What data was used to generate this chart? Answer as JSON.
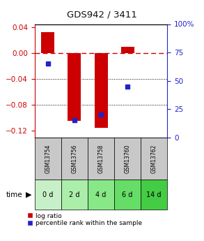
{
  "title": "GDS942 / 3411",
  "samples": [
    "GSM13754",
    "GSM13756",
    "GSM13758",
    "GSM13760",
    "GSM13762"
  ],
  "time_labels": [
    "0 d",
    "2 d",
    "4 d",
    "6 d",
    "14 d"
  ],
  "log_ratios": [
    0.033,
    -0.105,
    -0.115,
    0.01,
    0.0
  ],
  "percentile_ranks": [
    65,
    15,
    20,
    45,
    0
  ],
  "ylim_left": [
    -0.13,
    0.045
  ],
  "ylim_right": [
    0,
    100
  ],
  "left_yticks": [
    0.04,
    0.0,
    -0.04,
    -0.08,
    -0.12
  ],
  "right_yticks": [
    100,
    75,
    50,
    25,
    0
  ],
  "bar_color": "#cc0000",
  "marker_color": "#2222cc",
  "zero_line_color": "#cc0000",
  "grid_color": "#000000",
  "sample_bg_color": "#c8c8c8",
  "title_color": "#111111",
  "left_axis_color": "#cc0000",
  "right_axis_color": "#2222cc",
  "bar_width": 0.5,
  "legend_labels": [
    "log ratio",
    "percentile rank within the sample"
  ],
  "green_colors": [
    "#c8f0c8",
    "#aaeeaa",
    "#88e888",
    "#66dd66",
    "#44cc44"
  ]
}
